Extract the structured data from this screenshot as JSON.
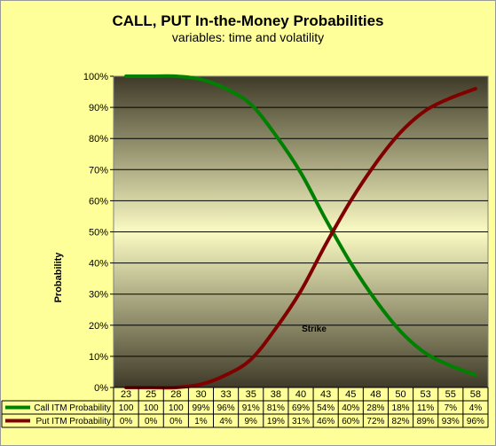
{
  "chart_data": {
    "type": "line",
    "title": "CALL, PUT In-the-Money Probabilities",
    "subtitle": "variables:  time and volatility",
    "ylabel": "Probability",
    "ylim": [
      0,
      100
    ],
    "yticks": [
      "0%",
      "10%",
      "20%",
      "30%",
      "40%",
      "50%",
      "60%",
      "70%",
      "80%",
      "90%",
      "100%"
    ],
    "categories": [
      "23",
      "25",
      "28",
      "30",
      "33",
      "35",
      "38",
      "40",
      "43",
      "45",
      "48",
      "50",
      "53",
      "55",
      "58"
    ],
    "annotation": "Strike",
    "series": [
      {
        "name": "Call ITM Probability",
        "color": "#008000",
        "values": [
          100,
          100,
          100,
          99,
          96,
          91,
          81,
          69,
          54,
          40,
          28,
          18,
          11,
          7,
          4
        ],
        "labels": [
          "100",
          "100",
          "100",
          "99%",
          "96%",
          "91%",
          "81%",
          "69%",
          "54%",
          "40%",
          "28%",
          "18%",
          "11%",
          "7%",
          "4%"
        ]
      },
      {
        "name": "Put ITM Probability",
        "color": "#800000",
        "values": [
          0,
          0,
          0,
          1,
          4,
          9,
          19,
          31,
          46,
          60,
          72,
          82,
          89,
          93,
          96
        ],
        "labels": [
          "0%",
          "0%",
          "0%",
          "1%",
          "4%",
          "9%",
          "19%",
          "31%",
          "46%",
          "60%",
          "72%",
          "82%",
          "89%",
          "93%",
          "96%"
        ]
      }
    ]
  }
}
